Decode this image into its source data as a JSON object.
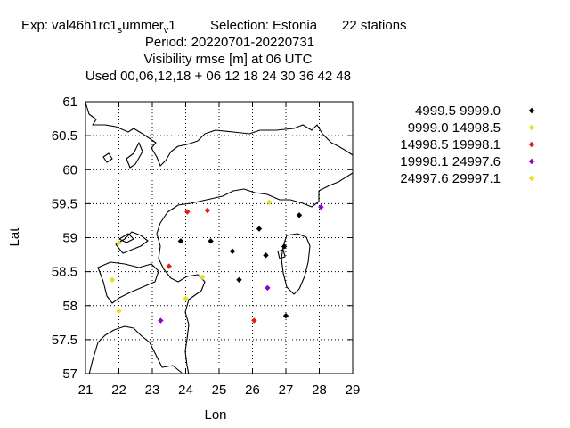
{
  "title": {
    "line1_a": "Exp: val46h1rc1",
    "line1_sub1": "s",
    "line1_b": "ummer",
    "line1_sub2": "v",
    "line1_c": "1",
    "line1_selection": "Selection: Estonia",
    "line1_stations": "22 stations",
    "line2": "Period: 20220701-20220731",
    "line3": "Visibility rmse [m] at  06 UTC",
    "line4": "Used  00,06,12,18  + 06 12 18 24 30 36 42 48"
  },
  "chart_data": {
    "type": "scatter",
    "xlabel": "Lon",
    "ylabel": "Lat",
    "xlim": [
      21,
      29
    ],
    "ylim": [
      57,
      61
    ],
    "xticks": [
      21,
      22,
      23,
      24,
      25,
      26,
      27,
      28,
      29
    ],
    "yticks": [
      57,
      57.5,
      58,
      58.5,
      59,
      59.5,
      60,
      60.5,
      61
    ],
    "xtick_labels": [
      "21",
      "22",
      "23",
      "24",
      "25",
      "26",
      "27",
      "28",
      "29"
    ],
    "ytick_labels": [
      "57",
      "57.5",
      "58",
      "58.5",
      "59",
      "59.5",
      "60",
      "60.5",
      "61"
    ],
    "grid": true,
    "legend_position": "right",
    "series": [
      {
        "name": "4999.5 9999.0",
        "color": "#000000",
        "points": [
          [
            23.85,
            58.95
          ],
          [
            24.75,
            58.95
          ],
          [
            25.4,
            58.8
          ],
          [
            25.6,
            58.38
          ],
          [
            26.2,
            59.13
          ],
          [
            26.4,
            58.74
          ],
          [
            26.95,
            58.87
          ],
          [
            27.4,
            59.33
          ],
          [
            27.0,
            57.85
          ]
        ]
      },
      {
        "name": "9999.0 14998.5",
        "color": "#e8e020",
        "points": [
          [
            22.0,
            58.92
          ],
          [
            21.8,
            58.38
          ],
          [
            22.0,
            57.92
          ],
          [
            24.5,
            58.42
          ],
          [
            24.0,
            58.1
          ],
          [
            26.5,
            59.52
          ]
        ]
      },
      {
        "name": "14998.5 19998.1",
        "color": "#dd2211",
        "points": [
          [
            24.05,
            59.38
          ],
          [
            24.65,
            59.4
          ],
          [
            23.5,
            58.58
          ],
          [
            26.05,
            57.78
          ]
        ]
      },
      {
        "name": "19998.1 24997.6",
        "color": "#9400d3",
        "points": [
          [
            28.05,
            59.45
          ],
          [
            26.45,
            58.26
          ],
          [
            23.25,
            57.78
          ]
        ]
      },
      {
        "name": "24997.6 29997.1",
        "color": "#e8e020",
        "points": []
      }
    ]
  }
}
